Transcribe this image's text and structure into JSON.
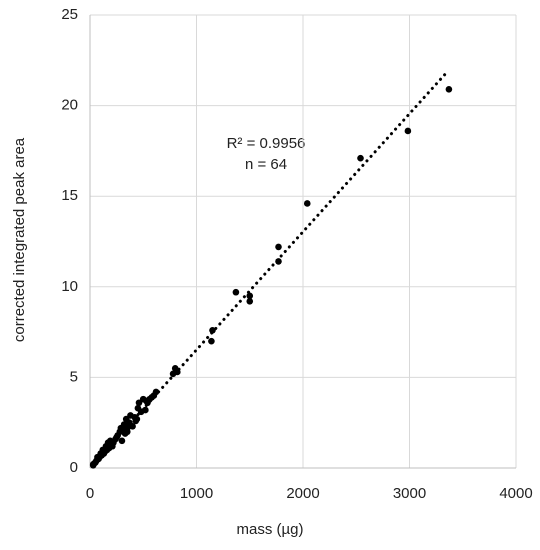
{
  "chart_data": {
    "type": "scatter",
    "xlabel": "mass (µg)",
    "ylabel": "corrected integrated peak area",
    "annotations": [
      "R² = 0.9956",
      "n = 64"
    ],
    "x": [
      3370,
      2985,
      2540,
      2040,
      1770,
      1770,
      1500,
      1500,
      1370,
      1150,
      1140,
      800,
      780,
      820,
      620,
      580,
      560,
      540,
      520,
      500,
      480,
      460,
      450,
      440,
      430,
      400,
      380,
      370,
      350,
      340,
      330,
      320,
      310,
      300,
      290,
      280,
      250,
      220,
      210,
      200,
      190,
      180,
      170,
      160,
      150,
      140,
      130,
      120,
      110,
      100,
      90,
      80,
      70,
      60,
      50,
      40,
      30,
      30,
      600,
      350,
      240,
      420,
      530,
      260
    ],
    "values": [
      20.9,
      18.6,
      17.1,
      14.6,
      12.2,
      11.4,
      9.5,
      9.2,
      9.7,
      7.6,
      7.0,
      5.5,
      5.2,
      5.3,
      4.2,
      3.9,
      3.8,
      3.6,
      3.2,
      3.8,
      3.1,
      3.6,
      3.3,
      2.7,
      2.6,
      2.3,
      2.9,
      2.5,
      2.2,
      2.7,
      1.9,
      2.4,
      2.1,
      1.5,
      2.2,
      2.0,
      1.7,
      1.4,
      1.2,
      1.3,
      1.5,
      1.1,
      1.4,
      1.0,
      1.2,
      0.9,
      0.8,
      1.0,
      0.7,
      0.8,
      0.6,
      0.5,
      0.6,
      0.4,
      0.3,
      0.25,
      0.2,
      0.15,
      4.0,
      2.0,
      1.6,
      2.8,
      3.7,
      1.8
    ],
    "color": "#000000",
    "trendline": {
      "x": [
        30,
        3360
      ],
      "values": [
        0.2,
        21.9
      ],
      "color": "#000000"
    },
    "xlim": [
      0,
      4000
    ],
    "xticks": [
      0,
      1000,
      2000,
      3000,
      4000
    ],
    "ylim": [
      0,
      25
    ],
    "yticks": [
      0,
      5,
      10,
      15,
      20,
      25
    ],
    "grid": true
  }
}
